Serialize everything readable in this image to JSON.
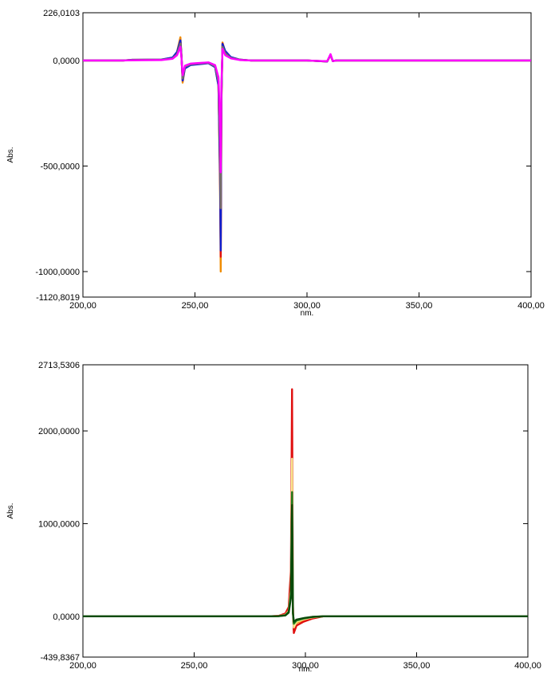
{
  "colors": {
    "frame": "#000000",
    "orange": "#f08c00",
    "red": "#e01010",
    "blue": "#1020d0",
    "gray": "#7a7068",
    "magenta": "#ff00ff",
    "yellow": "#f8e890",
    "green": "#208020",
    "darkgreen": "#0a4a0a"
  },
  "chart_data": [
    {
      "type": "line",
      "title": "",
      "xlabel": "nm.",
      "ylabel": "Abs.",
      "xlim": [
        200,
        400
      ],
      "ylim": [
        -1120.8019,
        226.0103
      ],
      "x_ticks": [
        200,
        250,
        300,
        350,
        400
      ],
      "x_tick_labels": [
        "200,00",
        "250,00",
        "300,00",
        "350,00",
        "400,00"
      ],
      "y_ticks": [
        226.0103,
        0,
        -500,
        -1000,
        -1120.8019
      ],
      "y_tick_labels": [
        "226,0103",
        "0,0000",
        "-500,0000",
        "-1000,0000",
        "-1120,8019"
      ],
      "grid": false,
      "series": [
        {
          "color": "orange",
          "points": [
            [
              200,
              0
            ],
            [
              218,
              0
            ],
            [
              222,
              3
            ],
            [
              235,
              4
            ],
            [
              240,
              12
            ],
            [
              242,
              40
            ],
            [
              243.5,
              110
            ],
            [
              244,
              20
            ],
            [
              244.5,
              -105
            ],
            [
              245.5,
              -35
            ],
            [
              248,
              -20
            ],
            [
              256,
              -12
            ],
            [
              259,
              -30
            ],
            [
              260.5,
              -120
            ],
            [
              261.2,
              -600
            ],
            [
              261.5,
              -1000
            ],
            [
              261.8,
              -200
            ],
            [
              262.3,
              85
            ],
            [
              263.5,
              40
            ],
            [
              266,
              15
            ],
            [
              270,
              4
            ],
            [
              275,
              0
            ],
            [
              300,
              0
            ],
            [
              309,
              -5
            ],
            [
              310.5,
              25
            ],
            [
              311.5,
              -3
            ],
            [
              313,
              0
            ],
            [
              400,
              0
            ]
          ]
        },
        {
          "color": "red",
          "points": [
            [
              200,
              0
            ],
            [
              218,
              0
            ],
            [
              222,
              2
            ],
            [
              235,
              3
            ],
            [
              240,
              10
            ],
            [
              242,
              35
            ],
            [
              243.5,
              95
            ],
            [
              244,
              15
            ],
            [
              244.5,
              -95
            ],
            [
              245.5,
              -30
            ],
            [
              248,
              -18
            ],
            [
              256,
              -11
            ],
            [
              259,
              -28
            ],
            [
              260.5,
              -110
            ],
            [
              261.2,
              -550
            ],
            [
              261.5,
              -930
            ],
            [
              261.8,
              -190
            ],
            [
              262.3,
              80
            ],
            [
              263.5,
              38
            ],
            [
              266,
              14
            ],
            [
              270,
              3
            ],
            [
              275,
              0
            ],
            [
              300,
              0
            ],
            [
              309,
              -5
            ],
            [
              310.5,
              28
            ],
            [
              311.5,
              -3
            ],
            [
              313,
              0
            ],
            [
              400,
              0
            ]
          ]
        },
        {
          "color": "blue",
          "points": [
            [
              200,
              0
            ],
            [
              218,
              0
            ],
            [
              222,
              3
            ],
            [
              235,
              4
            ],
            [
              240,
              14
            ],
            [
              242,
              40
            ],
            [
              243.5,
              95
            ],
            [
              244,
              18
            ],
            [
              244.5,
              -95
            ],
            [
              245.5,
              -38
            ],
            [
              248,
              -22
            ],
            [
              256,
              -13
            ],
            [
              259,
              -32
            ],
            [
              260.5,
              -120
            ],
            [
              261.2,
              -520
            ],
            [
              261.5,
              -900
            ],
            [
              261.8,
              -180
            ],
            [
              262.3,
              78
            ],
            [
              263.5,
              45
            ],
            [
              266,
              16
            ],
            [
              270,
              4
            ],
            [
              275,
              0
            ],
            [
              300,
              0
            ],
            [
              309,
              -5
            ],
            [
              310.5,
              28
            ],
            [
              311.5,
              -3
            ],
            [
              313,
              0
            ],
            [
              400,
              0
            ]
          ]
        },
        {
          "color": "gray",
          "points": [
            [
              200,
              0
            ],
            [
              218,
              0
            ],
            [
              222,
              2
            ],
            [
              235,
              3
            ],
            [
              240,
              10
            ],
            [
              242,
              30
            ],
            [
              243.5,
              80
            ],
            [
              244,
              15
            ],
            [
              244.5,
              -85
            ],
            [
              245.5,
              -30
            ],
            [
              248,
              -18
            ],
            [
              256,
              -11
            ],
            [
              259,
              -28
            ],
            [
              260.5,
              -100
            ],
            [
              261.2,
              -400
            ],
            [
              261.5,
              -700
            ],
            [
              261.8,
              -150
            ],
            [
              262.3,
              65
            ],
            [
              263.5,
              35
            ],
            [
              266,
              12
            ],
            [
              270,
              3
            ],
            [
              275,
              0
            ],
            [
              300,
              0
            ],
            [
              309,
              -4
            ],
            [
              310.5,
              25
            ],
            [
              311.5,
              -3
            ],
            [
              313,
              0
            ],
            [
              400,
              0
            ]
          ]
        },
        {
          "color": "magenta",
          "points": [
            [
              200,
              0
            ],
            [
              218,
              0
            ],
            [
              222,
              1
            ],
            [
              235,
              2
            ],
            [
              240,
              8
            ],
            [
              242,
              25
            ],
            [
              243.5,
              65
            ],
            [
              244,
              10
            ],
            [
              244.5,
              -70
            ],
            [
              245.5,
              -25
            ],
            [
              248,
              -15
            ],
            [
              256,
              -9
            ],
            [
              259,
              -22
            ],
            [
              260.5,
              -80
            ],
            [
              261.2,
              -300
            ],
            [
              261.5,
              -530
            ],
            [
              261.8,
              -120
            ],
            [
              262.3,
              55
            ],
            [
              263.5,
              25
            ],
            [
              266,
              10
            ],
            [
              270,
              2
            ],
            [
              275,
              0
            ],
            [
              300,
              0
            ],
            [
              309,
              -4
            ],
            [
              310.5,
              30
            ],
            [
              311.5,
              -3
            ],
            [
              313,
              0
            ],
            [
              400,
              0
            ]
          ]
        }
      ]
    },
    {
      "type": "line",
      "title": "",
      "xlabel": "nm.",
      "ylabel": "Abs.",
      "xlim": [
        200,
        400
      ],
      "ylim": [
        -439.8367,
        2713.5306
      ],
      "x_ticks": [
        200,
        250,
        300,
        350,
        400
      ],
      "x_tick_labels": [
        "200,00",
        "250,00",
        "300,00",
        "350,00",
        "400,00"
      ],
      "y_ticks": [
        2713.5306,
        2000,
        1000,
        0,
        -439.8367
      ],
      "y_tick_labels": [
        "2713,5306",
        "2000,0000",
        "1000,0000",
        "0,0000",
        "-439,8367"
      ],
      "grid": false,
      "series": [
        {
          "color": "orange",
          "points": [
            [
              200,
              0
            ],
            [
              284,
              0
            ],
            [
              288,
              3
            ],
            [
              291,
              20
            ],
            [
              292.5,
              80
            ],
            [
              293.5,
              400
            ],
            [
              294,
              1500
            ],
            [
              294.4,
              50
            ],
            [
              294.8,
              -150
            ],
            [
              296,
              -70
            ],
            [
              299,
              -40
            ],
            [
              303,
              -15
            ],
            [
              308,
              0
            ],
            [
              400,
              0
            ]
          ]
        },
        {
          "color": "red",
          "points": [
            [
              200,
              0
            ],
            [
              284,
              0
            ],
            [
              288,
              5
            ],
            [
              291,
              30
            ],
            [
              292.5,
              100
            ],
            [
              293.5,
              500
            ],
            [
              294,
              2450
            ],
            [
              294.4,
              100
            ],
            [
              294.8,
              -180
            ],
            [
              296,
              -100
            ],
            [
              299,
              -60
            ],
            [
              303,
              -25
            ],
            [
              308,
              0
            ],
            [
              400,
              0
            ]
          ]
        },
        {
          "color": "yellow",
          "points": [
            [
              200,
              0
            ],
            [
              284,
              0
            ],
            [
              288,
              3
            ],
            [
              291,
              15
            ],
            [
              292.5,
              60
            ],
            [
              293.5,
              300
            ],
            [
              294,
              1700
            ],
            [
              294.4,
              50
            ],
            [
              294.8,
              -120
            ],
            [
              296,
              -60
            ],
            [
              299,
              -35
            ],
            [
              303,
              -12
            ],
            [
              308,
              0
            ],
            [
              400,
              0
            ]
          ]
        },
        {
          "color": "green",
          "points": [
            [
              200,
              0
            ],
            [
              284,
              0
            ],
            [
              288,
              2
            ],
            [
              291,
              12
            ],
            [
              292.5,
              50
            ],
            [
              293.5,
              250
            ],
            [
              294,
              1340
            ],
            [
              294.4,
              40
            ],
            [
              294.8,
              -80
            ],
            [
              296,
              -45
            ],
            [
              299,
              -25
            ],
            [
              303,
              -8
            ],
            [
              308,
              0
            ],
            [
              400,
              0
            ]
          ]
        },
        {
          "color": "darkgreen",
          "points": [
            [
              200,
              0
            ],
            [
              284,
              0
            ],
            [
              288,
              2
            ],
            [
              291,
              10
            ],
            [
              292.5,
              40
            ],
            [
              293.5,
              200
            ],
            [
              294,
              1200
            ],
            [
              294.4,
              35
            ],
            [
              294.8,
              -60
            ],
            [
              296,
              -35
            ],
            [
              299,
              -20
            ],
            [
              303,
              -6
            ],
            [
              308,
              0
            ],
            [
              400,
              0
            ]
          ]
        }
      ]
    }
  ]
}
